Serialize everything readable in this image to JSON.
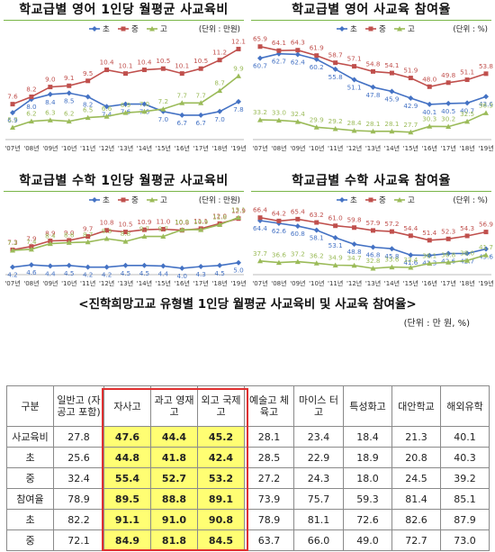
{
  "colors": {
    "cho": "#4472c4",
    "jung": "#c0504d",
    "go": "#9bbb59",
    "highlight": "#ffff66",
    "frame": "#e03030"
  },
  "chart_data": [
    {
      "type": "line",
      "title": "학교급별 영어 1인당 월평균 사교육비",
      "unit": "(단위 : 만원)",
      "categories": [
        "'07년",
        "'08년",
        "'09년",
        "'10년",
        "'11년",
        "'12년",
        "'13년",
        "'14년",
        "'15년",
        "'16년",
        "'17년",
        "'18년",
        "'19년"
      ],
      "series": [
        {
          "name": "초",
          "values": [
            6.9,
            8.0,
            8.4,
            8.5,
            8.2,
            7.4,
            7.6,
            7.6,
            7.0,
            6.7,
            6.7,
            7.0,
            7.8
          ]
        },
        {
          "name": "중",
          "values": [
            7.6,
            8.2,
            9.0,
            9.1,
            9.5,
            10.4,
            10.1,
            10.4,
            10.5,
            10.1,
            10.5,
            11.2,
            12.1
          ]
        },
        {
          "name": "고",
          "values": [
            5.7,
            6.2,
            6.3,
            6.2,
            6.5,
            6.6,
            6.9,
            7.0,
            7.2,
            7.7,
            7.7,
            8.7,
            9.9
          ]
        }
      ],
      "ylim": [
        5,
        12.5
      ]
    },
    {
      "type": "line",
      "title": "학교급별 영어 사교육 참여율",
      "unit": "(단위 : %)",
      "categories": [
        "'07년",
        "'08년",
        "'09년",
        "'10년",
        "'11년",
        "'12년",
        "'13년",
        "'14년",
        "'15년",
        "'16년",
        "'17년",
        "'18년",
        "'19년"
      ],
      "series": [
        {
          "name": "초",
          "values": [
            60.7,
            62.7,
            62.4,
            60.2,
            55.8,
            51.1,
            47.8,
            45.9,
            42.9,
            40.1,
            40.5,
            40.7,
            43.6
          ]
        },
        {
          "name": "중",
          "values": [
            65.9,
            64.1,
            64.3,
            61.9,
            58.7,
            57.1,
            54.8,
            54.1,
            51.9,
            48.0,
            49.8,
            51.1,
            53.8
          ]
        },
        {
          "name": "고",
          "values": [
            33.2,
            33.0,
            32.4,
            29.9,
            29.2,
            28.4,
            28.1,
            28.1,
            27.7,
            30.3,
            30.2,
            32.5,
            36.3
          ]
        }
      ],
      "ylim": [
        26,
        67
      ]
    },
    {
      "type": "line",
      "title": "학교급별 수학 1인당 월평균 사교육비",
      "unit": "(단위 : 만원)",
      "categories": [
        "'07년",
        "'08년",
        "'09년",
        "'10년",
        "'11년",
        "'12년",
        "'13년",
        "'14년",
        "'15년",
        "'16년",
        "'17년",
        "'18년",
        "'19년"
      ],
      "series": [
        {
          "name": "초",
          "values": [
            4.2,
            4.6,
            4.4,
            4.5,
            4.2,
            4.2,
            4.5,
            4.5,
            4.4,
            4.0,
            4.3,
            4.5,
            5.0
          ]
        },
        {
          "name": "중",
          "values": [
            7.3,
            7.9,
            8.9,
            9.0,
            9.7,
            10.8,
            10.5,
            10.9,
            11.0,
            10.8,
            11.1,
            12.0,
            12.9
          ]
        },
        {
          "name": "고",
          "values": [
            7.2,
            7.4,
            8.4,
            8.6,
            8.7,
            9.3,
            8.8,
            9.7,
            9.7,
            10.9,
            10.9,
            11.8,
            13.1
          ]
        }
      ],
      "ylim": [
        3.5,
        13.5
      ]
    },
    {
      "type": "line",
      "title": "학교급별 수학 사교육 참여율",
      "unit": "(단위 : %)",
      "categories": [
        "'07년",
        "'08년",
        "'09년",
        "'10년",
        "'11년",
        "'12년",
        "'13년",
        "'14년",
        "'15년",
        "'16년",
        "'17년",
        "'18년",
        "'19년"
      ],
      "series": [
        {
          "name": "초",
          "values": [
            64.4,
            62.6,
            60.8,
            58.1,
            53.1,
            48.8,
            46.8,
            45.8,
            41.6,
            41.3,
            42.6,
            42.7,
            45.6
          ]
        },
        {
          "name": "중",
          "values": [
            66.4,
            64.2,
            65.4,
            63.2,
            61.0,
            59.8,
            57.9,
            57.2,
            54.4,
            51.4,
            52.3,
            54.3,
            56.9
          ]
        },
        {
          "name": "고",
          "values": [
            37.7,
            36.6,
            37.2,
            36.2,
            34.9,
            34.7,
            32.8,
            33.6,
            33.4,
            36.1,
            36.8,
            38.0,
            41.7
          ]
        }
      ],
      "ylim": [
        31,
        68
      ]
    },
    {
      "type": "table",
      "title": "<진학희망고교 유형별 1인당 월평균 사교육비 및 사교육 참여율>",
      "unit": "(단위 : 만 원, %)",
      "columns": [
        "구분",
        "일반고 (자공고 포함)",
        "자사고",
        "과고 영재고",
        "외고 국제고",
        "예술고 체육고",
        "마이스 터고",
        "특성화고",
        "대안학교",
        "해외유학"
      ],
      "rows": [
        {
          "label": "사교육비",
          "values": [
            "27.8",
            "47.6",
            "44.4",
            "45.2",
            "28.1",
            "23.4",
            "18.4",
            "21.3",
            "40.1"
          ]
        },
        {
          "label": "초",
          "values": [
            "25.6",
            "44.8",
            "41.8",
            "42.4",
            "28.5",
            "22.9",
            "18.9",
            "20.8",
            "40.3"
          ]
        },
        {
          "label": "중",
          "values": [
            "32.4",
            "55.4",
            "52.7",
            "53.2",
            "27.2",
            "24.3",
            "18.0",
            "24.5",
            "39.2"
          ]
        },
        {
          "label": "참여율",
          "values": [
            "78.9",
            "89.5",
            "88.8",
            "89.1",
            "73.9",
            "75.7",
            "59.3",
            "81.4",
            "85.1"
          ]
        },
        {
          "label": "초",
          "values": [
            "82.2",
            "91.1",
            "91.0",
            "90.8",
            "78.9",
            "81.1",
            "72.6",
            "82.6",
            "87.9"
          ]
        },
        {
          "label": "중",
          "values": [
            "72.1",
            "84.9",
            "81.8",
            "84.5",
            "63.7",
            "66.0",
            "49.0",
            "72.7",
            "73.0"
          ]
        }
      ]
    }
  ]
}
